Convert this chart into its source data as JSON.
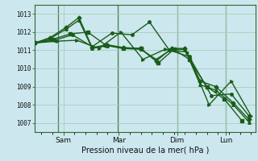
{
  "xlabel": "Pression niveau de la mer( hPa )",
  "bg_color": "#cce8ee",
  "grid_color": "#aaccbb",
  "line_color": "#1a5c1a",
  "ylim": [
    1006.5,
    1013.5
  ],
  "yticks": [
    1007,
    1008,
    1009,
    1010,
    1011,
    1012,
    1013
  ],
  "xtick_labels": [
    "Sam",
    "Mar",
    "Dim",
    "Lun"
  ],
  "xtick_pos": [
    0.13,
    0.38,
    0.645,
    0.865
  ],
  "series": [
    {
      "x": [
        0.0,
        0.07,
        0.14,
        0.2,
        0.26,
        0.33,
        0.4,
        0.48,
        0.55,
        0.62,
        0.68,
        0.75,
        0.82,
        0.9,
        0.97
      ],
      "y": [
        1011.4,
        1011.7,
        1012.25,
        1012.8,
        1011.15,
        1011.3,
        1011.15,
        1011.1,
        1010.4,
        1011.1,
        1011.1,
        1009.3,
        1009.0,
        1008.1,
        1007.2
      ],
      "marker": "D",
      "ms": 2.5,
      "lw": 1.0
    },
    {
      "x": [
        0.0,
        0.07,
        0.14,
        0.2,
        0.26,
        0.33,
        0.4,
        0.48,
        0.55,
        0.62,
        0.68,
        0.75,
        0.82,
        0.9,
        0.97
      ],
      "y": [
        1011.4,
        1011.65,
        1012.15,
        1012.65,
        1011.1,
        1011.25,
        1011.1,
        1011.05,
        1010.5,
        1011.05,
        1011.05,
        1009.1,
        1008.8,
        1008.0,
        1007.05
      ],
      "marker": "^",
      "ms": 2.5,
      "lw": 1.0
    },
    {
      "x": [
        0.0,
        0.08,
        0.16,
        0.24,
        0.32,
        0.4,
        0.48,
        0.56,
        0.63,
        0.7,
        0.78,
        0.86,
        0.94
      ],
      "y": [
        1011.4,
        1011.6,
        1011.9,
        1012.0,
        1011.3,
        1011.1,
        1011.1,
        1010.3,
        1011.05,
        1010.5,
        1009.0,
        1008.3,
        1007.1
      ],
      "marker": "s",
      "ms": 2.5,
      "lw": 1.0
    },
    {
      "x": [
        0.0,
        0.09,
        0.17,
        0.26,
        0.35,
        0.44,
        0.52,
        0.61,
        0.7,
        0.8,
        0.89,
        0.97
      ],
      "y": [
        1011.4,
        1011.55,
        1011.85,
        1011.2,
        1011.95,
        1011.85,
        1012.55,
        1011.0,
        1010.65,
        1008.5,
        1008.6,
        1007.4
      ],
      "marker": "o",
      "ms": 2.5,
      "lw": 1.0
    },
    {
      "x": [
        0.0,
        0.1,
        0.19,
        0.29,
        0.39,
        0.49,
        0.59,
        0.69,
        0.79,
        0.89,
        0.98
      ],
      "y": [
        1011.4,
        1011.5,
        1011.55,
        1011.1,
        1012.0,
        1010.5,
        1011.05,
        1010.9,
        1008.0,
        1009.3,
        1007.4
      ],
      "marker": ">",
      "ms": 2.5,
      "lw": 1.0
    }
  ],
  "vlines": [
    0.105,
    0.375,
    0.645,
    0.865
  ],
  "vline_color": "#336633",
  "figsize": [
    3.2,
    2.0
  ],
  "dpi": 100
}
